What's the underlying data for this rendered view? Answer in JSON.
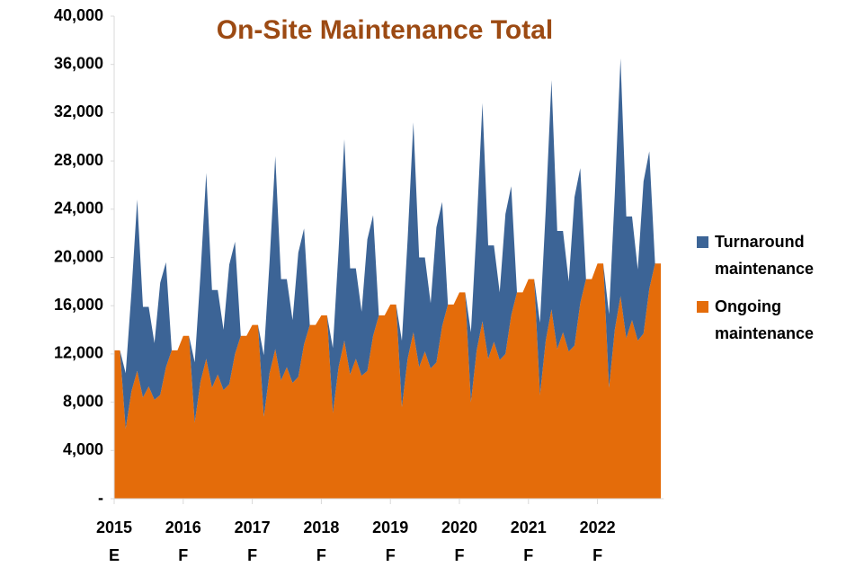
{
  "chart_data": {
    "type": "area",
    "stacked": true,
    "title": "On-Site Maintenance Total",
    "categories": [
      "2015 E",
      null,
      null,
      null,
      null,
      null,
      null,
      null,
      null,
      null,
      null,
      null,
      "2016 F",
      null,
      null,
      null,
      null,
      null,
      null,
      null,
      null,
      null,
      null,
      null,
      "2017 F",
      null,
      null,
      null,
      null,
      null,
      null,
      null,
      null,
      null,
      null,
      null,
      "2018 F",
      null,
      null,
      null,
      null,
      null,
      null,
      null,
      null,
      null,
      null,
      null,
      "2019 F",
      null,
      null,
      null,
      null,
      null,
      null,
      null,
      null,
      null,
      null,
      null,
      "2020 F",
      null,
      null,
      null,
      null,
      null,
      null,
      null,
      null,
      null,
      null,
      null,
      "2021 F",
      null,
      null,
      null,
      null,
      null,
      null,
      null,
      null,
      null,
      null,
      null,
      "2022 F",
      null,
      null,
      null,
      null,
      null,
      null,
      null,
      null,
      null,
      null,
      null
    ],
    "series": [
      {
        "name": "Turnaround maintenance",
        "color": "#3c6496",
        "values": [
          0,
          0,
          4600,
          8200,
          14200,
          7500,
          6600,
          4700,
          9300,
          8700,
          0,
          0,
          0,
          0,
          5000,
          8900,
          15400,
          8100,
          7000,
          5000,
          9900,
          9300,
          0,
          0,
          0,
          0,
          5100,
          9200,
          16000,
          8400,
          7300,
          5200,
          10300,
          9600,
          0,
          0,
          0,
          0,
          5400,
          9700,
          16700,
          8800,
          7500,
          5300,
          10900,
          10000,
          0,
          0,
          0,
          0,
          5500,
          9900,
          17400,
          9100,
          7800,
          5400,
          11200,
          10300,
          0,
          0,
          0,
          0,
          5800,
          10300,
          18100,
          9400,
          8000,
          5600,
          11600,
          10700,
          0,
          0,
          0,
          0,
          6000,
          10800,
          19000,
          9800,
          8400,
          5800,
          12300,
          11200,
          0,
          0,
          0,
          0,
          6100,
          11200,
          19700,
          10100,
          8600,
          5900,
          12600,
          11400,
          0,
          0
        ]
      },
      {
        "name": "Ongoing maintenance",
        "color": "#e46c0a",
        "values": [
          12300,
          12300,
          5800,
          8900,
          10600,
          8400,
          9300,
          8200,
          8600,
          10900,
          12300,
          12300,
          13500,
          13500,
          6300,
          9700,
          11600,
          9200,
          10300,
          9000,
          9500,
          12000,
          13500,
          13500,
          14400,
          14400,
          6800,
          10400,
          12400,
          9800,
          10900,
          9600,
          10100,
          12800,
          14400,
          14400,
          15200,
          15200,
          7100,
          10900,
          13100,
          10300,
          11600,
          10200,
          10600,
          13500,
          15200,
          15200,
          16100,
          16100,
          7600,
          11600,
          13800,
          10900,
          12200,
          10800,
          11300,
          14300,
          16100,
          16100,
          17100,
          17100,
          8000,
          12300,
          14700,
          11600,
          13000,
          11500,
          12000,
          15200,
          17100,
          17100,
          18200,
          18200,
          8600,
          13100,
          15700,
          12400,
          13800,
          12200,
          12700,
          16200,
          18200,
          18200,
          19500,
          19500,
          9200,
          14000,
          16800,
          13300,
          14800,
          13100,
          13700,
          17400,
          19500,
          19500
        ]
      }
    ],
    "ylim": [
      0,
      40000
    ],
    "yticks": [
      {
        "value": 0,
        "label": "-"
      },
      {
        "value": 4000,
        "label": "4,000"
      },
      {
        "value": 8000,
        "label": "8,000"
      },
      {
        "value": 12000,
        "label": "12,000"
      },
      {
        "value": 16000,
        "label": "16,000"
      },
      {
        "value": 20000,
        "label": "20,000"
      },
      {
        "value": 24000,
        "label": "24,000"
      },
      {
        "value": 28000,
        "label": "28,000"
      },
      {
        "value": 32000,
        "label": "32,000"
      },
      {
        "value": 36000,
        "label": "36,000"
      },
      {
        "value": 40000,
        "label": "40,000"
      }
    ],
    "grid": false,
    "legend": "right"
  }
}
